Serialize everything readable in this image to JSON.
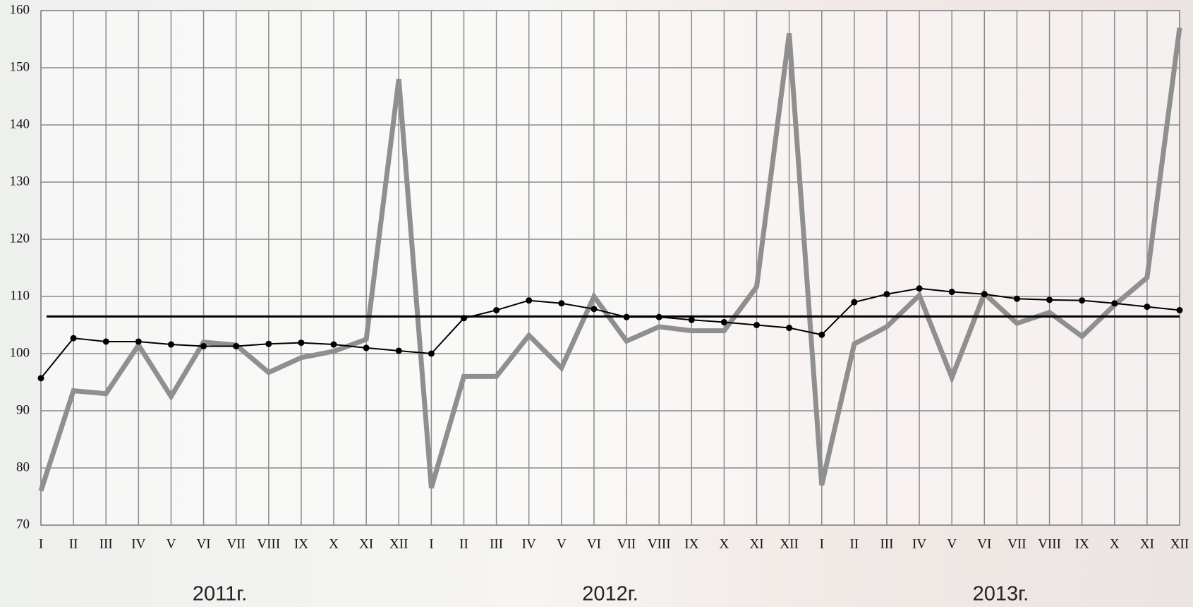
{
  "chart_data": {
    "type": "line",
    "categories": [
      "I",
      "II",
      "III",
      "IV",
      "V",
      "VI",
      "VII",
      "VIII",
      "IX",
      "X",
      "XI",
      "XII",
      "I",
      "II",
      "III",
      "IV",
      "V",
      "VI",
      "VII",
      "VIII",
      "IX",
      "X",
      "XI",
      "XII",
      "I",
      "II",
      "III",
      "IV",
      "V",
      "VI",
      "VII",
      "VIII",
      "IX",
      "X",
      "XI",
      "XII"
    ],
    "year_labels": [
      "2011г.",
      "2012г.",
      "2013г."
    ],
    "series": [
      {
        "color": "#8f8f8f",
        "values": [
          76,
          93.5,
          93,
          101.5,
          92.5,
          102,
          101.5,
          96.7,
          99.3,
          100.4,
          102.5,
          148,
          76.5,
          96,
          96,
          103.2,
          97.5,
          110,
          102.2,
          104.7,
          104,
          104,
          111.7,
          156,
          77,
          101.7,
          104.7,
          110.2,
          95.8,
          110.5,
          105.3,
          107.2,
          103,
          108.5,
          113.3,
          157
        ]
      },
      {
        "color": "#000000",
        "markers": true,
        "values": [
          95.7,
          102.7,
          102.1,
          102.1,
          101.6,
          101.3,
          101.3,
          101.7,
          101.9,
          101.6,
          101.0,
          100.5,
          100.0,
          106.2,
          107.6,
          109.3,
          108.8,
          107.8,
          106.4,
          106.4,
          105.9,
          105.5,
          105.0,
          104.5,
          103.3,
          109.0,
          110.4,
          111.4,
          110.8,
          110.4,
          109.6,
          109.4,
          109.3,
          108.8,
          108.2,
          107.6
        ]
      }
    ],
    "reference_line": 106.5,
    "ylim": [
      70,
      160
    ],
    "yticks": [
      70,
      80,
      90,
      100,
      110,
      120,
      130,
      140,
      150,
      160
    ],
    "grid": true
  }
}
